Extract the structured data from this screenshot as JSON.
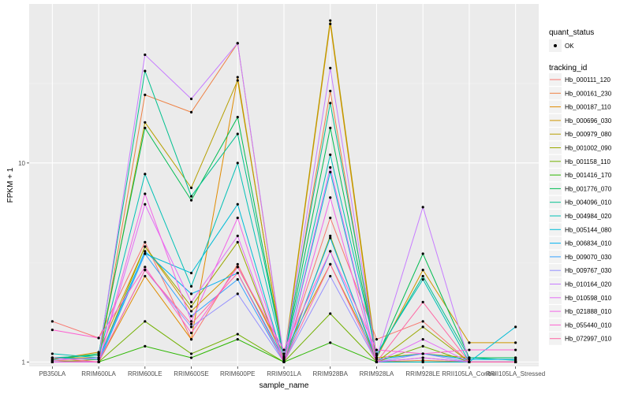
{
  "chart_data": {
    "type": "line",
    "xlabel": "sample_name",
    "ylabel": "FPKM + 1",
    "y_scale": "log10",
    "ylim": [
      0.95,
      63
    ],
    "y_ticks": [
      1,
      10
    ],
    "y_tick_labels": [
      "1",
      "10"
    ],
    "grid": true,
    "legend_position": "right",
    "categories": [
      "PB350LA",
      "RRIM600LA",
      "RRIM600LE",
      "RRIM600SE",
      "RRIM600PE",
      "RRIM901LA",
      "RRIM928BA",
      "RRIM928LA",
      "RRIM928LE",
      "RRII105LA_Control",
      "RRII105LA_Stressed"
    ],
    "shape_legend": {
      "title": "quant_status",
      "items": [
        "OK"
      ]
    },
    "color_legend_title": "tracking_id",
    "series": [
      {
        "name": "Hb_000111_120",
        "color": "#F8766D",
        "values": [
          1.6,
          1.32,
          4.0,
          1.3,
          3.1,
          1.05,
          5.3,
          1.3,
          1.6,
          1.0,
          1.0
        ]
      },
      {
        "name": "Hb_000161_230",
        "color": "#EE8043",
        "values": [
          1.02,
          1.0,
          22,
          18,
          40,
          1.02,
          23,
          1.0,
          1.02,
          1.0,
          1.0
        ]
      },
      {
        "name": "Hb_000187_110",
        "color": "#E08B00",
        "values": [
          1.0,
          1.0,
          2.7,
          1.3,
          27,
          1.0,
          50,
          1.0,
          1.0,
          1.0,
          1.0
        ]
      },
      {
        "name": "Hb_000696_030",
        "color": "#CD9600",
        "values": [
          1.03,
          1.12,
          3.8,
          1.8,
          3.0,
          1.1,
          3.1,
          1.05,
          2.9,
          1.25,
          1.25
        ]
      },
      {
        "name": "Hb_000979_080",
        "color": "#B69F00",
        "values": [
          1.05,
          1.05,
          16,
          7.5,
          26,
          1.03,
          52,
          1.05,
          1.1,
          1.05,
          1.05
        ]
      },
      {
        "name": "Hb_001002_090",
        "color": "#9AA800",
        "values": [
          1.0,
          1.03,
          3.8,
          1.9,
          4.0,
          1.0,
          4.3,
          1.0,
          1.5,
          1.0,
          1.0
        ]
      },
      {
        "name": "Hb_001158_110",
        "color": "#72B000",
        "values": [
          1.0,
          1.0,
          1.6,
          1.1,
          1.38,
          1.0,
          1.75,
          1.0,
          1.2,
          1.0,
          1.0
        ]
      },
      {
        "name": "Hb_001416_170",
        "color": "#2CB700",
        "values": [
          1.0,
          1.0,
          1.2,
          1.05,
          1.3,
          1.0,
          1.25,
          1.0,
          1.0,
          1.0,
          1.0
        ]
      },
      {
        "name": "Hb_001776_070",
        "color": "#00BC51",
        "values": [
          1.03,
          1.1,
          15,
          6.5,
          17,
          1.05,
          15,
          1.05,
          3.5,
          1.05,
          1.05
        ]
      },
      {
        "name": "Hb_004096_010",
        "color": "#00C08E",
        "values": [
          1.05,
          1.08,
          29,
          6.8,
          14,
          1.07,
          20,
          1.08,
          2.7,
          1.05,
          1.02
        ]
      },
      {
        "name": "Hb_004984_020",
        "color": "#00C0B5",
        "values": [
          1.1,
          1.05,
          8.8,
          2.4,
          10,
          1.05,
          11,
          1.1,
          2.6,
          1.0,
          1.0
        ]
      },
      {
        "name": "Hb_005144_080",
        "color": "#00BCD6",
        "values": [
          1.0,
          1.0,
          3.5,
          2.8,
          6.2,
          1.0,
          9.0,
          1.0,
          1.0,
          1.0,
          1.5
        ]
      },
      {
        "name": "Hb_006834_010",
        "color": "#00B2F0",
        "values": [
          1.05,
          1.03,
          3.6,
          2.2,
          2.8,
          1.03,
          4.2,
          1.03,
          1.1,
          1.03,
          1.03
        ]
      },
      {
        "name": "Hb_009070_030",
        "color": "#35A2FF",
        "values": [
          1.0,
          1.0,
          3.5,
          1.7,
          2.6,
          1.0,
          3.6,
          1.0,
          1.05,
          1.0,
          1.0
        ]
      },
      {
        "name": "Hb_009767_030",
        "color": "#9590FF",
        "values": [
          1.0,
          1.0,
          2.9,
          1.5,
          2.2,
          1.0,
          2.7,
          1.0,
          1.1,
          1.0,
          1.0
        ]
      },
      {
        "name": "Hb_010164_020",
        "color": "#C77CFF",
        "values": [
          1.02,
          1.05,
          35,
          21,
          40,
          1.05,
          30,
          1.05,
          6.0,
          1.0,
          1.0
        ]
      },
      {
        "name": "Hb_010598_010",
        "color": "#E36EF6",
        "values": [
          1.0,
          1.0,
          6.2,
          2.0,
          4.3,
          1.0,
          9.5,
          1.0,
          1.3,
          1.0,
          1.0
        ]
      },
      {
        "name": "Hb_021888_010",
        "color": "#F265E7",
        "values": [
          1.0,
          1.0,
          7.0,
          1.6,
          5.3,
          1.0,
          6.7,
          1.0,
          1.05,
          1.0,
          1.0
        ]
      },
      {
        "name": "Hb_055440_010",
        "color": "#FD61D1",
        "values": [
          1.45,
          1.32,
          3.0,
          1.4,
          3.0,
          1.15,
          3.6,
          1.15,
          1.1,
          1.15,
          1.15
        ]
      },
      {
        "name": "Hb_072997_010",
        "color": "#FF67A4",
        "values": [
          1.05,
          1.0,
          2.9,
          1.55,
          2.8,
          1.0,
          3.1,
          1.0,
          2.0,
          1.0,
          1.0
        ]
      }
    ]
  }
}
